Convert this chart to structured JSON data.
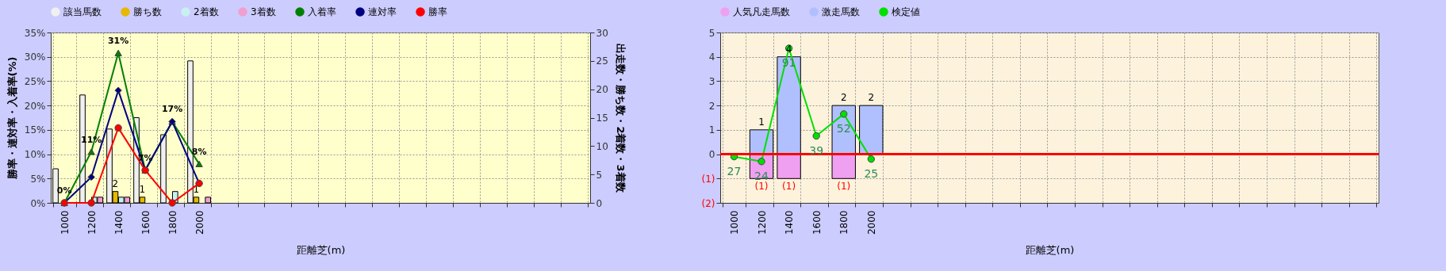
{
  "chart_data": [
    {
      "type": "bar",
      "categories": [
        "1000",
        "1200",
        "1400",
        "1600",
        "1800",
        "2000",
        null,
        null,
        null,
        null,
        null,
        null,
        null,
        null,
        null,
        null,
        null,
        null,
        null,
        null
      ],
      "xlabel": "距離芝(m)",
      "ylabel": "勝率・連対率・入着率(%)",
      "y2label": "出走数・勝ち数・2着数・3着数",
      "ylim": [
        0,
        35
      ],
      "yticks": [
        {
          "value": 0,
          "label": "0%"
        },
        {
          "value": 5,
          "label": "5%"
        },
        {
          "value": 10,
          "label": "10%"
        },
        {
          "value": 15,
          "label": "15%"
        },
        {
          "value": 20,
          "label": "20%"
        },
        {
          "value": 25,
          "label": "25%"
        },
        {
          "value": 30,
          "label": "30%"
        },
        {
          "value": 35,
          "label": "35%"
        }
      ],
      "y2lim": [
        0,
        30
      ],
      "y2ticks": [
        0,
        5,
        10,
        15,
        20,
        25,
        30
      ],
      "grid": true,
      "legend": "top",
      "series": [
        {
          "name": "該当馬数",
          "color": "#f0f0f0",
          "axis": "y2",
          "values": [
            6,
            19,
            13,
            15,
            12,
            25,
            null,
            null,
            null,
            null,
            null,
            null,
            null,
            null,
            null,
            null,
            null,
            null,
            null,
            null
          ]
        },
        {
          "name": "勝ち数",
          "color": "#e6b800",
          "axis": "y2",
          "values": [
            0,
            0,
            2,
            1,
            0,
            1,
            null,
            null,
            null,
            null,
            null,
            null,
            null,
            null,
            null,
            null,
            null,
            null,
            null,
            null
          ],
          "value_labels": [
            null,
            null,
            "2",
            "1",
            null,
            "1",
            null,
            null,
            null,
            null,
            null,
            null,
            null,
            null,
            null,
            null,
            null,
            null,
            null,
            null
          ]
        },
        {
          "name": "2着数",
          "color": "#c8f0f0",
          "axis": "y2",
          "values": [
            0,
            1,
            1,
            0,
            2,
            0,
            null,
            null,
            null,
            null,
            null,
            null,
            null,
            null,
            null,
            null,
            null,
            null,
            null,
            null
          ]
        },
        {
          "name": "3着数",
          "color": "#f0a0d0",
          "axis": "y2",
          "values": [
            0,
            1,
            1,
            0,
            0,
            1,
            null,
            null,
            null,
            null,
            null,
            null,
            null,
            null,
            null,
            null,
            null,
            null,
            null,
            null
          ]
        },
        {
          "name": "入着率",
          "type": "line",
          "color": "#008000",
          "marker": "triangle",
          "values": [
            0,
            10.5,
            30.8,
            6.7,
            16.7,
            8,
            null,
            null,
            null,
            null,
            null,
            null,
            null,
            null,
            null,
            null,
            null,
            null,
            null,
            null
          ],
          "value_labels": [
            "0%",
            "11%",
            "31%",
            "7%",
            "17%",
            "8%",
            null,
            null,
            null,
            null,
            null,
            null,
            null,
            null,
            null,
            null,
            null,
            null,
            null,
            null
          ]
        },
        {
          "name": "連対率",
          "type": "line",
          "color": "#000080",
          "marker": "diamond",
          "values": [
            0,
            5.3,
            23.1,
            6.7,
            16.7,
            4,
            null,
            null,
            null,
            null,
            null,
            null,
            null,
            null,
            null,
            null,
            null,
            null,
            null,
            null
          ]
        },
        {
          "name": "勝率",
          "type": "line",
          "color": "#ff0000",
          "marker": "circle",
          "values": [
            0,
            0,
            15.4,
            6.7,
            0,
            4,
            null,
            null,
            null,
            null,
            null,
            null,
            null,
            null,
            null,
            null,
            null,
            null,
            null,
            null
          ]
        }
      ]
    },
    {
      "type": "bar",
      "stacked": true,
      "categories": [
        "1000",
        "1200",
        "1400",
        "1600",
        "1800",
        "2000",
        null,
        null,
        null,
        null,
        null,
        null,
        null,
        null,
        null,
        null,
        null,
        null,
        null,
        null,
        null,
        null,
        null,
        null
      ],
      "xlabel": "距離芝(m)",
      "ylim": [
        -2,
        5
      ],
      "yticks": [
        {
          "value": -2,
          "label": "(2)"
        },
        {
          "value": -1,
          "label": "(1)"
        },
        0,
        1,
        2,
        3,
        4,
        5
      ],
      "grid": true,
      "legend": "top",
      "ref_lines": [
        {
          "axis": "y",
          "value": 0,
          "color": "#ff0000"
        }
      ],
      "series": [
        {
          "name": "人気凡走馬数",
          "color": "#f0a0f0",
          "values": [
            0,
            -1,
            -1,
            0,
            -1,
            0,
            null,
            null,
            null,
            null,
            null,
            null,
            null,
            null,
            null,
            null,
            null,
            null,
            null,
            null,
            null,
            null,
            null,
            null
          ],
          "value_labels": [
            null,
            "(1)",
            "(1)",
            null,
            "(1)",
            null,
            null,
            null,
            null,
            null,
            null,
            null,
            null,
            null,
            null,
            null,
            null,
            null,
            null,
            null,
            null,
            null,
            null,
            null
          ]
        },
        {
          "name": "激走馬数",
          "color": "#b0c0ff",
          "values": [
            0,
            1,
            4,
            0,
            2,
            2,
            null,
            null,
            null,
            null,
            null,
            null,
            null,
            null,
            null,
            null,
            null,
            null,
            null,
            null,
            null,
            null,
            null,
            null
          ],
          "value_labels": [
            null,
            "1",
            "4",
            null,
            "2",
            "2",
            null,
            null,
            null,
            null,
            null,
            null,
            null,
            null,
            null,
            null,
            null,
            null,
            null,
            null,
            null,
            null,
            null,
            null
          ]
        },
        {
          "name": "検定値",
          "type": "line",
          "color": "#00e000",
          "marker": "circle",
          "values": [
            -0.1,
            -0.3,
            4.35,
            0.75,
            1.65,
            -0.2,
            null,
            null,
            null,
            null,
            null,
            null,
            null,
            null,
            null,
            null,
            null,
            null,
            null,
            null,
            null,
            null,
            null,
            null
          ]
        }
      ],
      "annotations": [
        {
          "text": "27",
          "x": "1000",
          "y": -0.1
        },
        {
          "text": "24",
          "x": "1200",
          "y": -0.3
        },
        {
          "text": "91",
          "x": "1400",
          "y": 4.35
        },
        {
          "text": "39",
          "x": "1600",
          "y": 0.75
        },
        {
          "text": "52",
          "x": "1800",
          "y": 1.65
        },
        {
          "text": "25",
          "x": "2000",
          "y": -0.2
        }
      ]
    }
  ]
}
